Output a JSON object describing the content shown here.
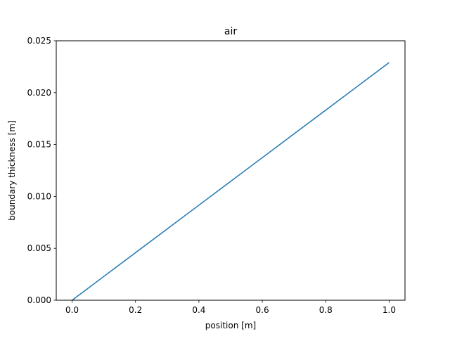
{
  "chart_data": {
    "type": "line",
    "title": "air",
    "xlabel": "position [m]",
    "ylabel": "boundary thickness [m]",
    "xlim": [
      -0.05,
      1.05
    ],
    "ylim": [
      0,
      0.025
    ],
    "x_ticks": [
      0.0,
      0.2,
      0.4,
      0.6,
      0.8,
      1.0
    ],
    "x_tick_labels": [
      "0.0",
      "0.2",
      "0.4",
      "0.6",
      "0.8",
      "1.0"
    ],
    "y_ticks": [
      0,
      0.005,
      0.01,
      0.015,
      0.02,
      0.025
    ],
    "y_tick_labels": [
      "0.000",
      "0.005",
      "0.010",
      "0.015",
      "0.020",
      "0.025"
    ],
    "grid": false,
    "series": [
      {
        "color": "#1f77b4",
        "x": [
          0.0,
          0.1,
          0.2,
          0.3,
          0.4,
          0.5,
          0.6,
          0.7,
          0.8,
          0.9,
          1.0
        ],
        "y": [
          0.0,
          0.00229,
          0.00458,
          0.00687,
          0.00916,
          0.01145,
          0.01374,
          0.01603,
          0.01832,
          0.02061,
          0.0229
        ]
      }
    ]
  }
}
